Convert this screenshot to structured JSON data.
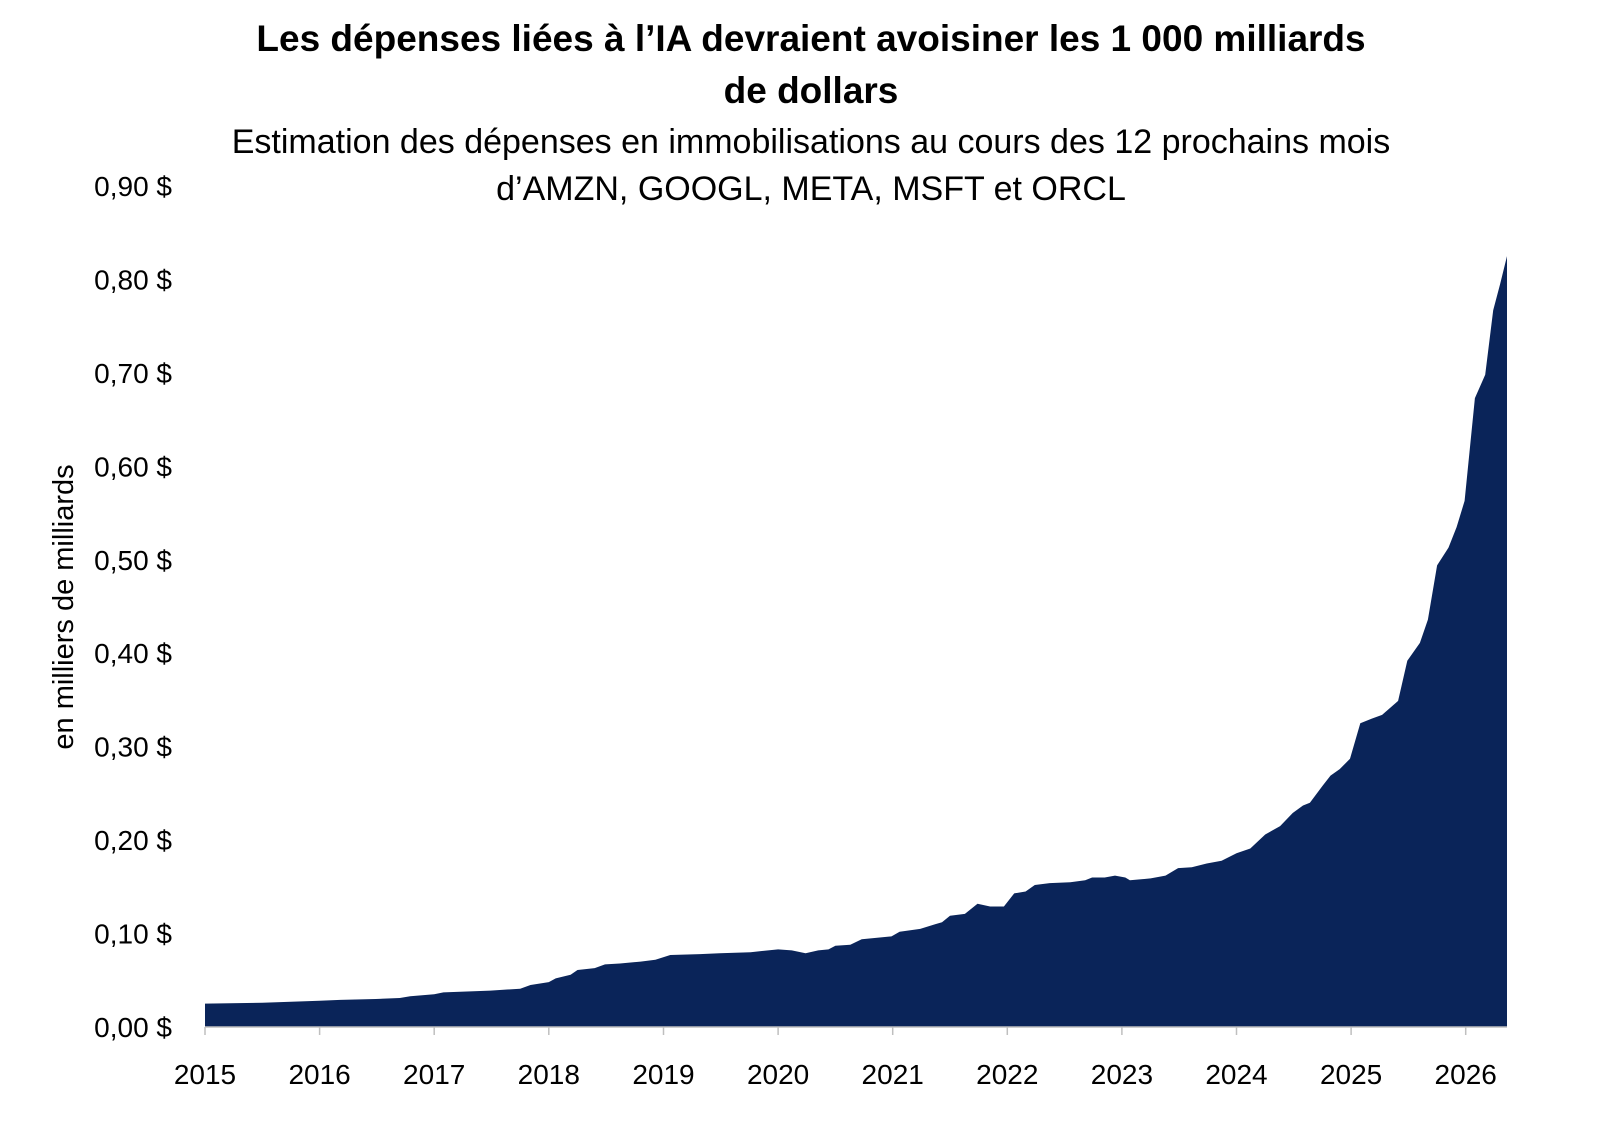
{
  "chart_data": {
    "type": "area",
    "title": [
      "Les dépenses liées à l’IA devraient avoisiner les 1 000 milliards",
      "de dollars"
    ],
    "subtitle": [
      "Estimation des dépenses en immobilisations au cours des 12 prochains mois",
      "d’AMZN, GOOGL, META, MSFT et ORCL"
    ],
    "ylabel": "en milliers de milliards",
    "xlim": [
      2015,
      2026.36
    ],
    "ylim": [
      0,
      0.9
    ],
    "yticks": [
      0,
      0.1,
      0.2,
      0.3,
      0.4,
      0.5,
      0.6,
      0.7,
      0.8,
      0.9
    ],
    "ytick_labels": [
      "0,00 $",
      "0,10 $",
      "0,20 $",
      "0,30 $",
      "0,40 $",
      "0,50 $",
      "0,60 $",
      "0,70 $",
      "0,80 $",
      "0,90 $"
    ],
    "xticks": [
      2015,
      2016,
      2017,
      2018,
      2019,
      2020,
      2021,
      2022,
      2023,
      2024,
      2025,
      2026
    ],
    "xtick_labels": [
      "2015",
      "2016",
      "2017",
      "2018",
      "2019",
      "2020",
      "2021",
      "2022",
      "2023",
      "2024",
      "2025",
      "2026"
    ],
    "grid": false,
    "legend": "none",
    "series": [
      {
        "color": "#0a2459",
        "x": [
          2015.0,
          2015.5,
          2016.0,
          2016.18,
          2016.49,
          2016.7,
          2016.79,
          2017.0,
          2017.08,
          2017.49,
          2017.75,
          2017.84,
          2018.0,
          2018.06,
          2018.19,
          2018.25,
          2018.4,
          2018.49,
          2018.62,
          2018.8,
          2018.93,
          2019.06,
          2019.32,
          2019.49,
          2019.76,
          2020.0,
          2020.12,
          2020.24,
          2020.35,
          2020.44,
          2020.5,
          2020.63,
          2020.73,
          2020.99,
          2021.06,
          2021.24,
          2021.37,
          2021.43,
          2021.5,
          2021.63,
          2021.74,
          2021.85,
          2021.97,
          2022.06,
          2022.16,
          2022.24,
          2022.37,
          2022.55,
          2022.68,
          2022.74,
          2022.85,
          2022.94,
          2023.03,
          2023.07,
          2023.25,
          2023.38,
          2023.49,
          2023.61,
          2023.74,
          2023.87,
          2024.0,
          2024.12,
          2024.25,
          2024.38,
          2024.49,
          2024.58,
          2024.64,
          2024.75,
          2024.82,
          2024.9,
          2024.99,
          2025.08,
          2025.18,
          2025.27,
          2025.41,
          2025.49,
          2025.6,
          2025.67,
          2025.75,
          2025.85,
          2025.92,
          2025.99,
          2026.08,
          2026.17,
          2026.24,
          2026.3,
          2026.36
        ],
        "y": [
          0.025,
          0.026,
          0.028,
          0.029,
          0.03,
          0.031,
          0.033,
          0.035,
          0.037,
          0.039,
          0.041,
          0.045,
          0.048,
          0.052,
          0.056,
          0.061,
          0.063,
          0.067,
          0.068,
          0.07,
          0.072,
          0.077,
          0.078,
          0.079,
          0.08,
          0.083,
          0.082,
          0.079,
          0.082,
          0.083,
          0.087,
          0.088,
          0.094,
          0.097,
          0.102,
          0.105,
          0.11,
          0.112,
          0.119,
          0.121,
          0.132,
          0.129,
          0.129,
          0.143,
          0.145,
          0.152,
          0.154,
          0.155,
          0.157,
          0.16,
          0.16,
          0.162,
          0.16,
          0.157,
          0.159,
          0.162,
          0.17,
          0.171,
          0.175,
          0.178,
          0.186,
          0.191,
          0.206,
          0.215,
          0.229,
          0.237,
          0.24,
          0.258,
          0.269,
          0.276,
          0.287,
          0.325,
          0.33,
          0.334,
          0.349,
          0.392,
          0.411,
          0.436,
          0.494,
          0.513,
          0.535,
          0.563,
          0.673,
          0.698,
          0.767,
          0.795,
          0.825
        ]
      }
    ]
  }
}
